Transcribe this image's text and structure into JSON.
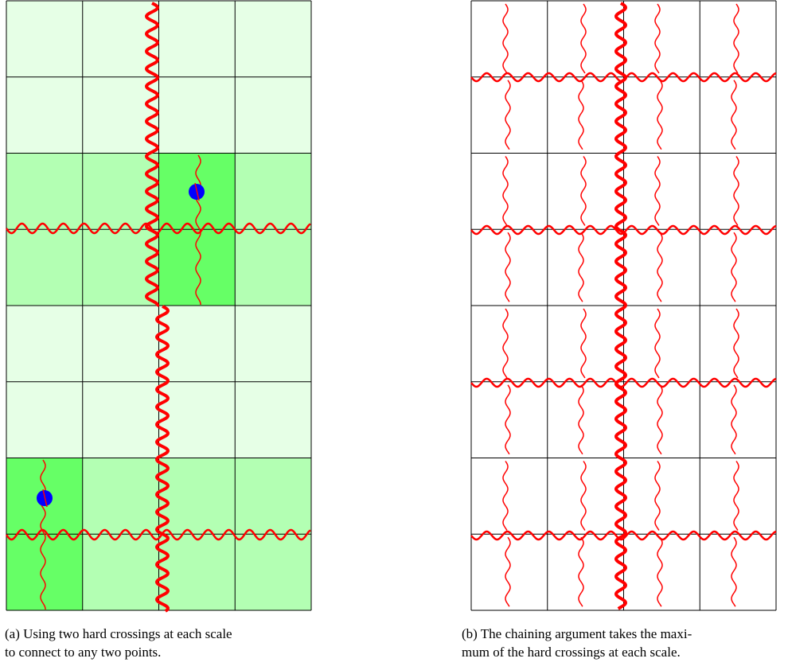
{
  "figure": {
    "panel_a": {
      "caption_lines": [
        "(a) Using two hard crossings at each scale",
        "to connect to any two points."
      ],
      "grid": {
        "cols": 4,
        "rows": 8
      },
      "cell_shades": [
        [
          "light",
          "light",
          "light",
          "light"
        ],
        [
          "light",
          "light",
          "light",
          "light"
        ],
        [
          "mid",
          "mid",
          "bright",
          "mid"
        ],
        [
          "mid",
          "mid",
          "bright",
          "mid"
        ],
        [
          "light",
          "light",
          "light",
          "light"
        ],
        [
          "light",
          "light",
          "light",
          "light"
        ],
        [
          "bright",
          "mid",
          "mid",
          "mid"
        ],
        [
          "bright",
          "mid",
          "mid",
          "mid"
        ]
      ],
      "points": 2
    },
    "panel_b": {
      "caption_lines": [
        "(b) The chaining argument takes the maxi-",
        "mum of the hard crossings at each scale."
      ],
      "grid": {
        "cols": 4,
        "rows": 8
      }
    },
    "colors": {
      "light": "#e6ffe6",
      "mid": "#b3ffb3",
      "bright": "#66ff66",
      "crossing": "#ff0000",
      "point": "#0000ff",
      "grid_line": "#000000"
    }
  }
}
